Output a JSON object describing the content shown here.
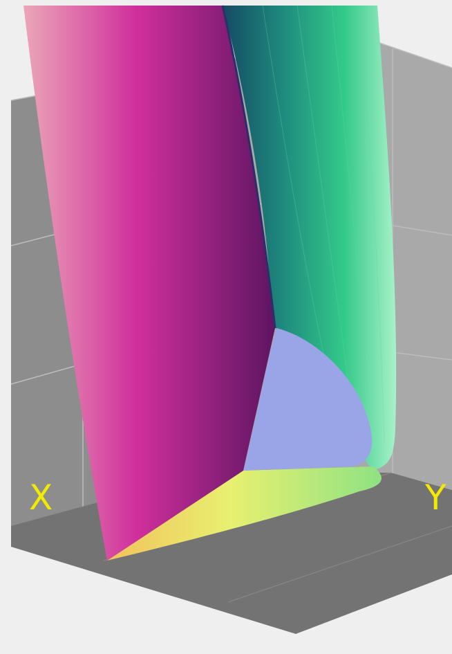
{
  "axes": {
    "x_label": "X",
    "y_label": "Y",
    "label_color": "#f2ea00"
  },
  "scene": {
    "background_color": "#efefef",
    "back_wall_color": "#a9a9a9",
    "floor_color": "#737373",
    "grid_color": "#bdbdbd",
    "surfaces": [
      {
        "name": "magenta-sheet",
        "colors": [
          "#eba6b8",
          "#d02f9c",
          "#5e1562"
        ]
      },
      {
        "name": "green-sheet",
        "colors": [
          "#154a63",
          "#2fb083",
          "#9ff0c2"
        ]
      },
      {
        "name": "yellow-fan",
        "colors": [
          "#f2c25c",
          "#e8f070",
          "#93e482"
        ]
      },
      {
        "name": "blue-cap",
        "colors": [
          "#9aa5e7"
        ]
      }
    ]
  }
}
